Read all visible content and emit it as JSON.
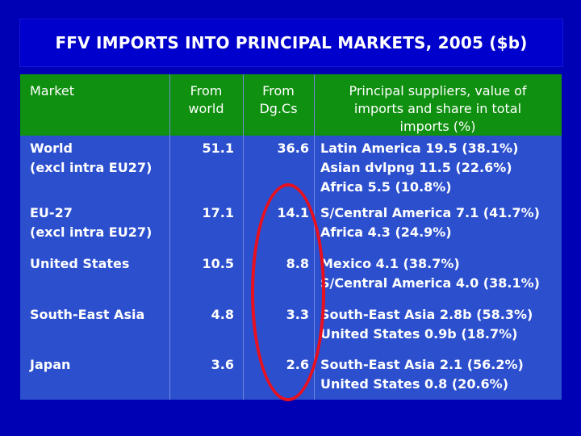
{
  "title": "FFV IMPORTS INTO PRINCIPAL MARKETS, 2005 ($b)",
  "headers": {
    "market": "Market",
    "from_world": [
      "From",
      "world"
    ],
    "from_dgcs": [
      "From",
      "Dg.Cs"
    ],
    "suppliers": [
      "Principal suppliers, value of",
      "imports and share in total",
      "imports (%)"
    ]
  },
  "rows": [
    {
      "market": [
        "World",
        "(excl intra EU27)"
      ],
      "from_world": "51.1",
      "from_dgcs": "36.6",
      "suppliers": [
        "Latin America 19.5 (38.1%)",
        "Asian dvlpng 11.5 (22.6%)",
        "Africa 5.5 (10.8%)"
      ]
    },
    {
      "market": [
        "EU-27",
        "(excl intra EU27)"
      ],
      "from_world": "17.1",
      "from_dgcs": "14.1",
      "suppliers": [
        "S/Central America 7.1 (41.7%)",
        "Africa 4.3 (24.9%)"
      ]
    },
    {
      "market": [
        "United States"
      ],
      "from_world": "10.5",
      "from_dgcs": "8.8",
      "suppliers": [
        "Mexico 4.1 (38.7%)",
        "S/Central America 4.0 (38.1%)"
      ]
    },
    {
      "market": [
        "South-East Asia"
      ],
      "from_world": "4.8",
      "from_dgcs": "3.3",
      "suppliers": [
        "South-East Asia 2.8b (58.3%)",
        "United States 0.9b (18.7%)"
      ]
    },
    {
      "market": [
        "Japan"
      ],
      "from_world": "3.6",
      "from_dgcs": "2.6",
      "suppliers": [
        "South-East Asia 2.1 (56.2%)",
        "United States 0.8 (20.6%)"
      ]
    }
  ],
  "colors": {
    "background": "#0000b4",
    "title_bar": "#0000cc",
    "header_row": "#109010",
    "body": "#2c4fce",
    "annotation_circle": "#e8101e"
  }
}
